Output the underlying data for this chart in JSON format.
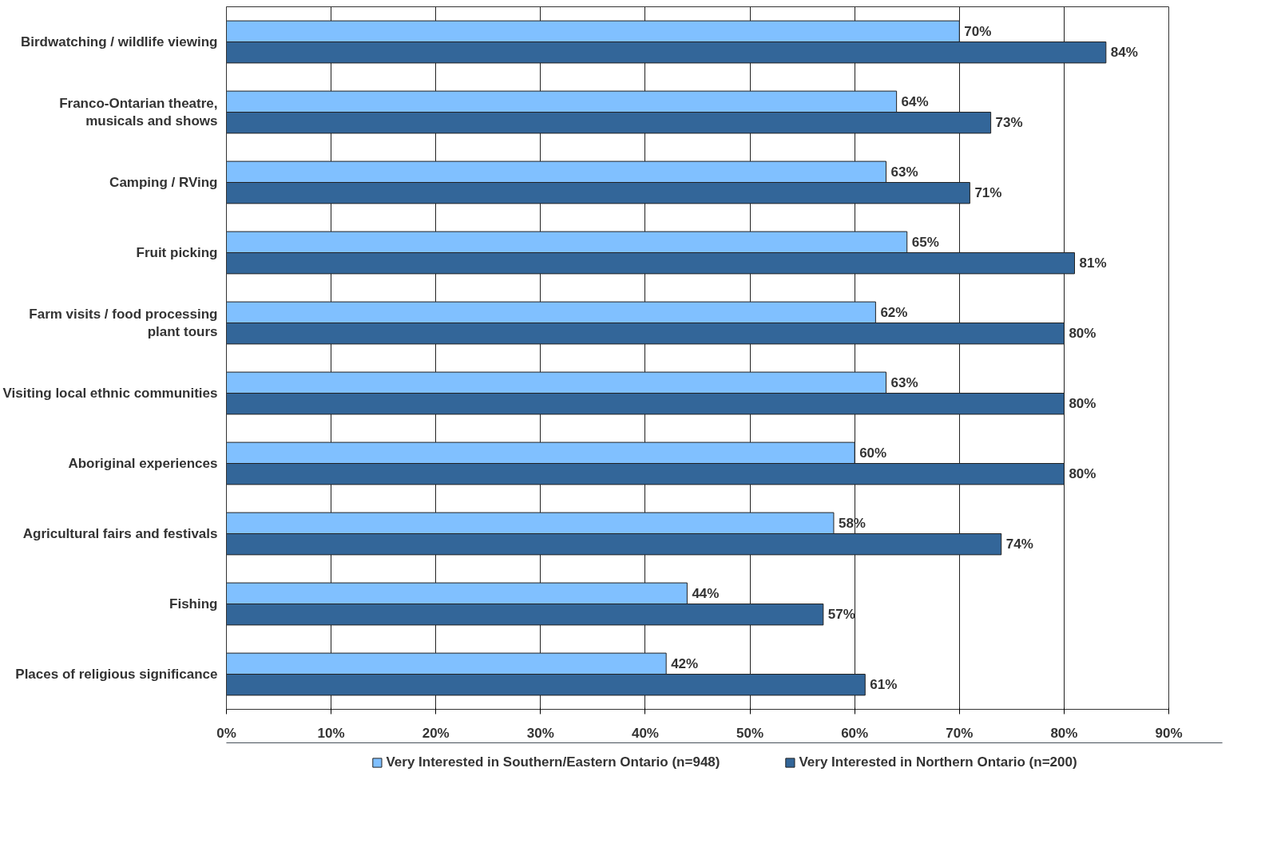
{
  "chart_data": {
    "type": "bar",
    "orientation": "horizontal",
    "categories": [
      "Birdwatching / wildlife viewing",
      "Franco-Ontarian theatre,\nmusicals and shows",
      "Camping / RVing",
      "Fruit picking",
      "Farm visits / food processing\nplant tours",
      "Visiting local ethnic communities",
      "Aboriginal experiences",
      "Agricultural fairs and festivals",
      "Fishing",
      "Places of religious significance"
    ],
    "series": [
      {
        "name": "Very Interested in Southern/Eastern Ontario (n=948)",
        "color": "#80c0ff",
        "values": [
          70,
          64,
          63,
          65,
          62,
          63,
          60,
          58,
          44,
          42
        ],
        "value_labels": [
          "70%",
          "64%",
          "63%",
          "65%",
          "62%",
          "63%",
          "60%",
          "58%",
          "44%",
          "42%"
        ]
      },
      {
        "name": "Very Interested in Northern Ontario (n=200)",
        "color": "#336699",
        "values": [
          84,
          73,
          71,
          81,
          80,
          80,
          80,
          74,
          57,
          61
        ],
        "value_labels": [
          "84%",
          "73%",
          "71%",
          "81%",
          "80%",
          "80%",
          "80%",
          "74%",
          "57%",
          "61%"
        ]
      }
    ],
    "xlim": [
      0,
      90
    ],
    "xticks": [
      {
        "value": 0,
        "label": "0%"
      },
      {
        "value": 10,
        "label": "10%"
      },
      {
        "value": 20,
        "label": "20%"
      },
      {
        "value": 30,
        "label": "30%"
      },
      {
        "value": 40,
        "label": "40%"
      },
      {
        "value": 50,
        "label": "50%"
      },
      {
        "value": 60,
        "label": "60%"
      },
      {
        "value": 70,
        "label": "70%"
      },
      {
        "value": 80,
        "label": "80%"
      },
      {
        "value": 90,
        "label": "90%"
      }
    ],
    "grid": "x",
    "legend": "bottom"
  }
}
